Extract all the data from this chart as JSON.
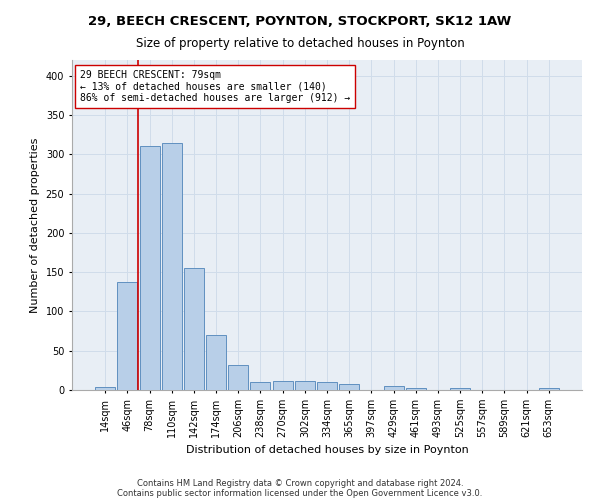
{
  "title1": "29, BEECH CRESCENT, POYNTON, STOCKPORT, SK12 1AW",
  "title2": "Size of property relative to detached houses in Poynton",
  "xlabel": "Distribution of detached houses by size in Poynton",
  "ylabel": "Number of detached properties",
  "footnote1": "Contains HM Land Registry data © Crown copyright and database right 2024.",
  "footnote2": "Contains public sector information licensed under the Open Government Licence v3.0.",
  "bin_labels": [
    "14sqm",
    "46sqm",
    "78sqm",
    "110sqm",
    "142sqm",
    "174sqm",
    "206sqm",
    "238sqm",
    "270sqm",
    "302sqm",
    "334sqm",
    "365sqm",
    "397sqm",
    "429sqm",
    "461sqm",
    "493sqm",
    "525sqm",
    "557sqm",
    "589sqm",
    "621sqm",
    "653sqm"
  ],
  "bar_heights": [
    4,
    137,
    310,
    314,
    155,
    70,
    32,
    10,
    12,
    12,
    10,
    8,
    0,
    5,
    3,
    0,
    3,
    0,
    0,
    0,
    3
  ],
  "bar_color": "#b8cfe8",
  "bar_edge_color": "#6090c0",
  "grid_color": "#d0dcea",
  "annotation_line1": "29 BEECH CRESCENT: 79sqm",
  "annotation_line2": "← 13% of detached houses are smaller (140)",
  "annotation_line3": "86% of semi-detached houses are larger (912) →",
  "vline_x": 1.5,
  "vline_color": "#cc0000",
  "ylim": [
    0,
    420
  ],
  "yticks": [
    0,
    50,
    100,
    150,
    200,
    250,
    300,
    350,
    400
  ],
  "background_color": "#e8eef5",
  "title1_fontsize": 9.5,
  "title2_fontsize": 8.5,
  "xlabel_fontsize": 8,
  "ylabel_fontsize": 8,
  "tick_fontsize": 7,
  "annot_fontsize": 7,
  "footnote_fontsize": 6
}
